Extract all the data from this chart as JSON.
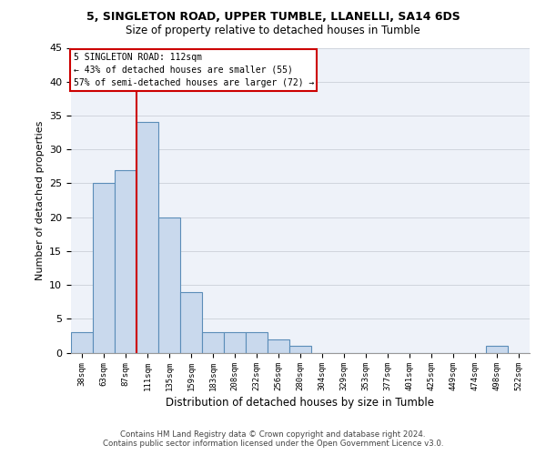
{
  "title_line1": "5, SINGLETON ROAD, UPPER TUMBLE, LLANELLI, SA14 6DS",
  "title_line2": "Size of property relative to detached houses in Tumble",
  "xlabel": "Distribution of detached houses by size in Tumble",
  "ylabel": "Number of detached properties",
  "footer_line1": "Contains HM Land Registry data © Crown copyright and database right 2024.",
  "footer_line2": "Contains public sector information licensed under the Open Government Licence v3.0.",
  "categories": [
    "38sqm",
    "63sqm",
    "87sqm",
    "111sqm",
    "135sqm",
    "159sqm",
    "183sqm",
    "208sqm",
    "232sqm",
    "256sqm",
    "280sqm",
    "304sqm",
    "329sqm",
    "353sqm",
    "377sqm",
    "401sqm",
    "425sqm",
    "449sqm",
    "474sqm",
    "498sqm",
    "522sqm"
  ],
  "values": [
    3,
    25,
    27,
    34,
    20,
    9,
    3,
    3,
    3,
    2,
    1,
    0,
    0,
    0,
    0,
    0,
    0,
    0,
    0,
    1,
    0
  ],
  "bar_color": "#c9d9ed",
  "bar_edge_color": "#5b8db8",
  "grid_color": "#d0d5dd",
  "bg_color": "#eef2f9",
  "annotation_line1": "5 SINGLETON ROAD: 112sqm",
  "annotation_line2": "← 43% of detached houses are smaller (55)",
  "annotation_line3": "57% of semi-detached houses are larger (72) →",
  "annotation_box_edgecolor": "#cc0000",
  "vertical_line_color": "#cc0000",
  "vertical_line_xindex": 3,
  "ylim": [
    0,
    45
  ],
  "yticks": [
    0,
    5,
    10,
    15,
    20,
    25,
    30,
    35,
    40,
    45
  ]
}
